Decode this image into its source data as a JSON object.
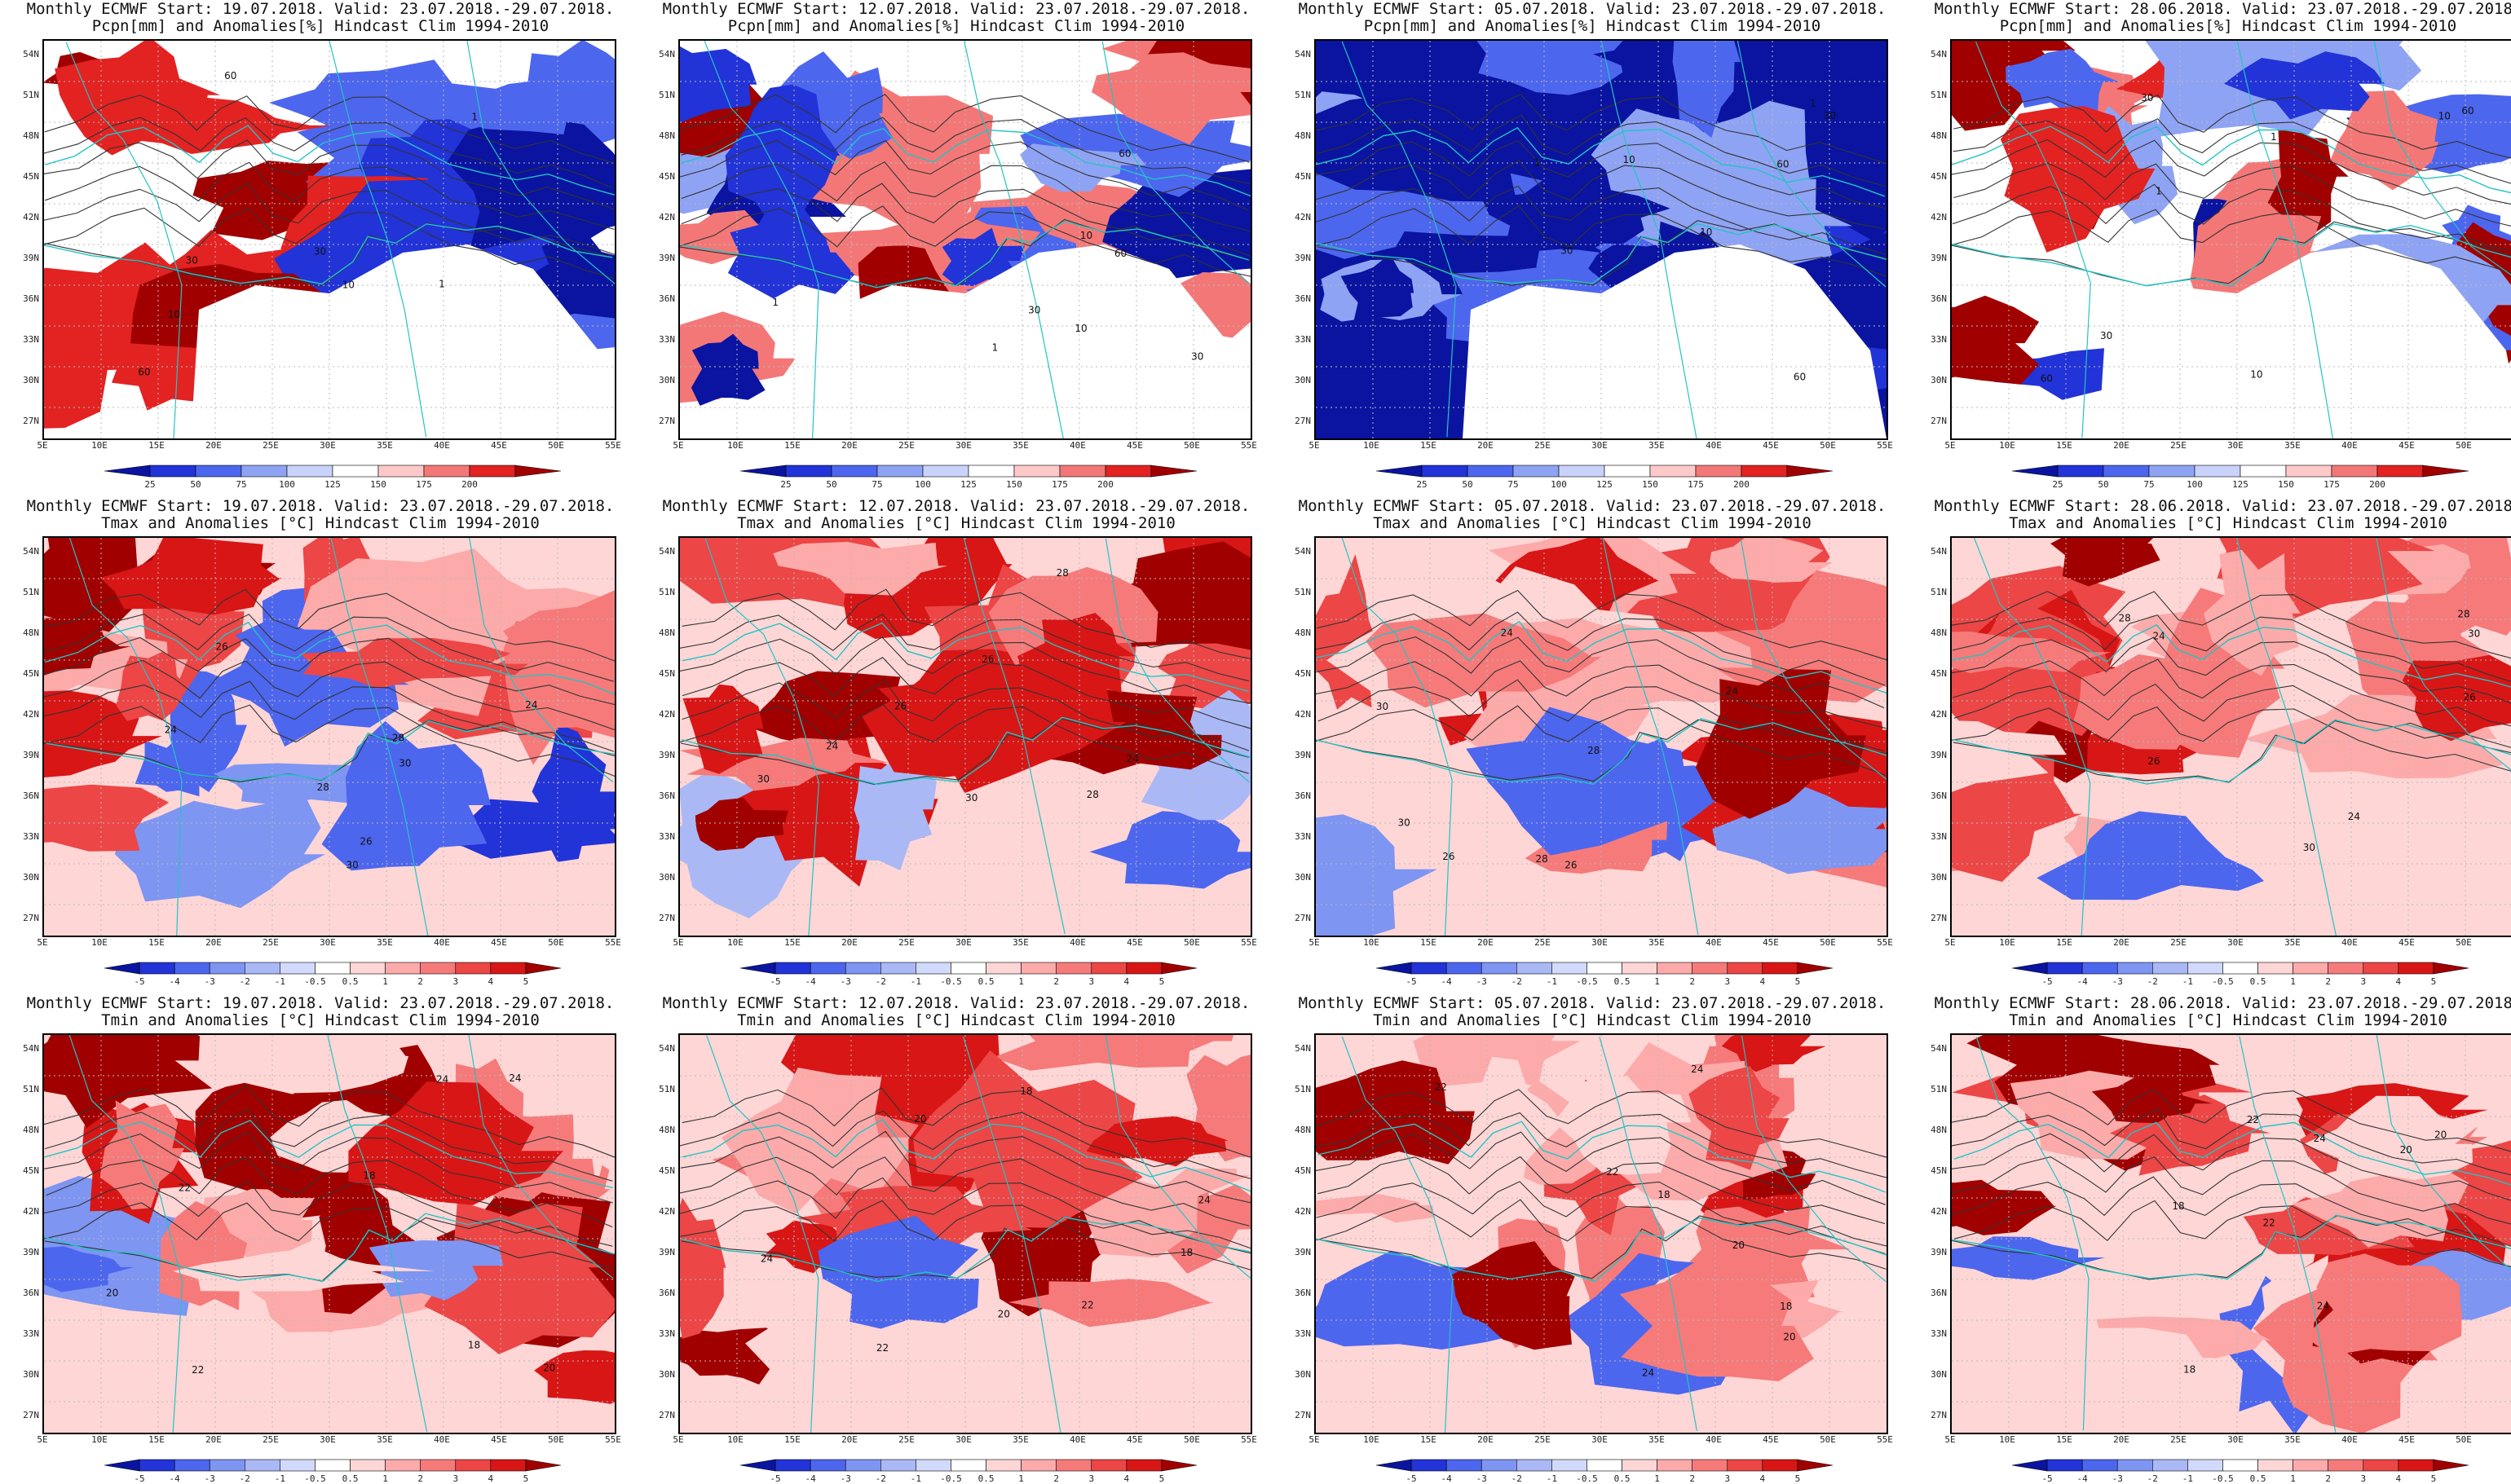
{
  "rows": [
    {
      "variable": "pcpn",
      "subtitle": "Pcpn[mm] and Anomalies[%] Hindcast Clim 1994-2010",
      "colorbar": {
        "labels": [
          "25",
          "50",
          "75",
          "100",
          "125",
          "150",
          "175",
          "200"
        ],
        "colors": [
          "#0a14a0",
          "#2233d8",
          "#4d66ee",
          "#8fa3f4",
          "#c9d2fb",
          "#ffffff",
          "#ffc9c9",
          "#f47777",
          "#e32222",
          "#a00000"
        ]
      },
      "lon_labels": [
        "5E",
        "10E",
        "15E",
        "20E",
        "25E",
        "30E",
        "35E",
        "40E",
        "45E",
        "50E",
        "55E"
      ],
      "contour_labels": [
        "10",
        "30",
        "60",
        "1"
      ]
    },
    {
      "variable": "tmax",
      "subtitle": "Tmax and Anomalies [°C] Hindcast Clim 1994-2010",
      "colorbar": {
        "labels": [
          "-5",
          "-4",
          "-3",
          "-2",
          "-1",
          "-0.5",
          "0.5",
          "1",
          "2",
          "3",
          "4",
          "5"
        ],
        "colors": [
          "#0a14a0",
          "#2233d8",
          "#4d66ee",
          "#7e95f2",
          "#aab8f6",
          "#d2dafb",
          "#ffffff",
          "#ffd6d6",
          "#fcaaaa",
          "#f67a7a",
          "#ec4646",
          "#d81616",
          "#a00000"
        ]
      },
      "lon_labels": [
        "5E",
        "10E",
        "15E",
        "20E",
        "25E",
        "30E",
        "35E",
        "40E",
        "45E",
        "50E",
        "55E"
      ],
      "contour_labels": [
        "26",
        "28",
        "30",
        "24"
      ]
    },
    {
      "variable": "tmin",
      "subtitle": "Tmin and Anomalies [°C] Hindcast Clim 1994-2010",
      "colorbar": {
        "labels": [
          "-5",
          "-4",
          "-3",
          "-2",
          "-1",
          "-0.5",
          "0.5",
          "1",
          "2",
          "3",
          "4",
          "5"
        ],
        "colors": [
          "#0a14a0",
          "#2233d8",
          "#4d66ee",
          "#7e95f2",
          "#aab8f6",
          "#d2dafb",
          "#ffffff",
          "#ffd6d6",
          "#fcaaaa",
          "#f67a7a",
          "#ec4646",
          "#d81616",
          "#a00000"
        ]
      },
      "lon_labels": [
        "5E",
        "10E",
        "15E",
        "20E",
        "25E",
        "30E",
        "35E",
        "40E",
        "45E",
        "50E",
        "55E"
      ],
      "contour_labels": [
        "18",
        "20",
        "22",
        "24"
      ]
    }
  ],
  "columns": [
    {
      "header": "Monthly ECMWF Start: 19.07.2018. Valid: 23.07.2018.-29.07.2018."
    },
    {
      "header": "Monthly ECMWF Start: 12.07.2018. Valid: 23.07.2018.-29.07.2018."
    },
    {
      "header": "Monthly ECMWF Start: 05.07.2018. Valid: 23.07.2018.-29.07.2018."
    },
    {
      "header": "Monthly ECMWF Start: 28.06.2018. Valid: 23.07.2018.-29.07.2018."
    }
  ],
  "lat_labels": [
    "54N",
    "51N",
    "48N",
    "45N",
    "42N",
    "39N",
    "36N",
    "33N",
    "30N",
    "27N"
  ],
  "panels": [
    {
      "row": 0,
      "col": 0,
      "anomaly_tone": "wet-south-west-dry-east",
      "pattern": 1
    },
    {
      "row": 0,
      "col": 1,
      "anomaly_tone": "mixed",
      "pattern": 2
    },
    {
      "row": 0,
      "col": 2,
      "anomaly_tone": "dry",
      "pattern": 3
    },
    {
      "row": 0,
      "col": 3,
      "anomaly_tone": "mixed",
      "pattern": 4
    },
    {
      "row": 1,
      "col": 0,
      "anomaly_tone": "mixed",
      "pattern": 5
    },
    {
      "row": 1,
      "col": 1,
      "anomaly_tone": "warm",
      "pattern": 6
    },
    {
      "row": 1,
      "col": 2,
      "anomaly_tone": "warm",
      "pattern": 7
    },
    {
      "row": 1,
      "col": 3,
      "anomaly_tone": "warm",
      "pattern": 8
    },
    {
      "row": 2,
      "col": 0,
      "anomaly_tone": "warm",
      "pattern": 9
    },
    {
      "row": 2,
      "col": 1,
      "anomaly_tone": "warm",
      "pattern": 10
    },
    {
      "row": 2,
      "col": 2,
      "anomaly_tone": "warm",
      "pattern": 11
    },
    {
      "row": 2,
      "col": 3,
      "anomaly_tone": "warm",
      "pattern": 12
    }
  ]
}
